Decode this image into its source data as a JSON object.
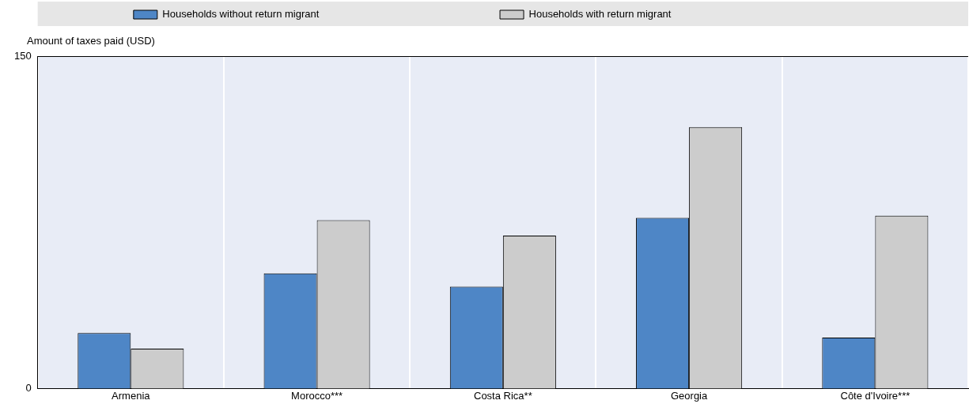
{
  "chart_data": {
    "type": "bar",
    "ylabel": "Amount of taxes paid (USD)",
    "categories": [
      "Armenia",
      "Morocco***",
      "Costa Rica**",
      "Georgia",
      "Côte d'Ivoire***"
    ],
    "series": [
      {
        "name": "Households without return migrant",
        "color": "#4e86c6",
        "values": [
          25,
          52,
          46,
          77,
          23
        ]
      },
      {
        "name": "Households with return migrant",
        "color": "#cccccc",
        "values": [
          18,
          76,
          69,
          118,
          78
        ]
      }
    ],
    "ylim": [
      0,
      150
    ],
    "yticks": [
      0,
      150
    ],
    "grid": "x",
    "legend": "top"
  }
}
